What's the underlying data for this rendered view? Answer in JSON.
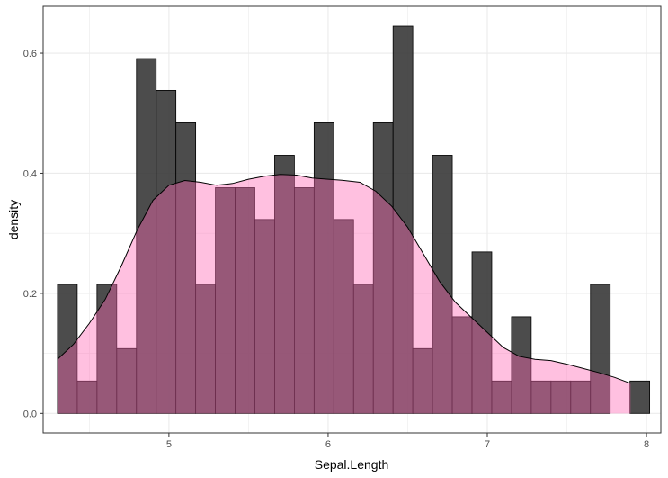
{
  "chart_data": {
    "type": "bar",
    "title": "",
    "xlabel": "Sepal.Length",
    "ylabel": "density",
    "xlim": [
      4.21,
      8.09
    ],
    "ylim": [
      -0.0325,
      0.678
    ],
    "x_ticks": [
      5,
      6,
      7,
      8
    ],
    "x_tick_labels": [
      "5",
      "6",
      "7",
      "8"
    ],
    "y_ticks": [
      0.0,
      0.2,
      0.4,
      0.6
    ],
    "y_tick_labels": [
      "0.0",
      "0.2",
      "0.4",
      "0.6"
    ],
    "grid": true,
    "histogram": {
      "bin_width": 0.124,
      "bin_starts": [
        4.3,
        4.424,
        4.548,
        4.672,
        4.796,
        4.92,
        5.044,
        5.168,
        5.292,
        5.416,
        5.54,
        5.664,
        5.788,
        5.912,
        6.036,
        6.16,
        6.284,
        6.408,
        6.532,
        6.656,
        6.78,
        6.904,
        7.028,
        7.152,
        7.276,
        7.4,
        7.524,
        7.648,
        7.772,
        7.896
      ],
      "values": [
        0.215,
        0.054,
        0.215,
        0.108,
        0.591,
        0.538,
        0.484,
        0.215,
        0.376,
        0.376,
        0.323,
        0.43,
        0.376,
        0.484,
        0.323,
        0.215,
        0.484,
        0.645,
        0.108,
        0.43,
        0.161,
        0.269,
        0.054,
        0.161,
        0.054,
        0.054,
        0.054,
        0.215,
        0.0,
        0.054
      ]
    },
    "density": {
      "x": [
        4.3,
        4.4,
        4.5,
        4.6,
        4.7,
        4.8,
        4.9,
        5.0,
        5.1,
        5.2,
        5.3,
        5.4,
        5.5,
        5.6,
        5.7,
        5.8,
        5.9,
        6.0,
        6.1,
        6.2,
        6.3,
        6.4,
        6.5,
        6.6,
        6.7,
        6.8,
        6.9,
        7.0,
        7.1,
        7.2,
        7.3,
        7.4,
        7.5,
        7.6,
        7.7,
        7.8,
        7.9
      ],
      "y": [
        0.09,
        0.115,
        0.15,
        0.19,
        0.245,
        0.305,
        0.355,
        0.38,
        0.388,
        0.385,
        0.38,
        0.383,
        0.39,
        0.395,
        0.398,
        0.397,
        0.392,
        0.39,
        0.388,
        0.385,
        0.37,
        0.345,
        0.31,
        0.265,
        0.22,
        0.185,
        0.16,
        0.135,
        0.11,
        0.095,
        0.09,
        0.088,
        0.082,
        0.075,
        0.068,
        0.06,
        0.05
      ]
    },
    "colors": {
      "bar_fill": "#333333",
      "density_fill": "#ff69b4",
      "density_line": "#000000",
      "grid": "#ebebeb",
      "panel_border": "#333333"
    }
  }
}
